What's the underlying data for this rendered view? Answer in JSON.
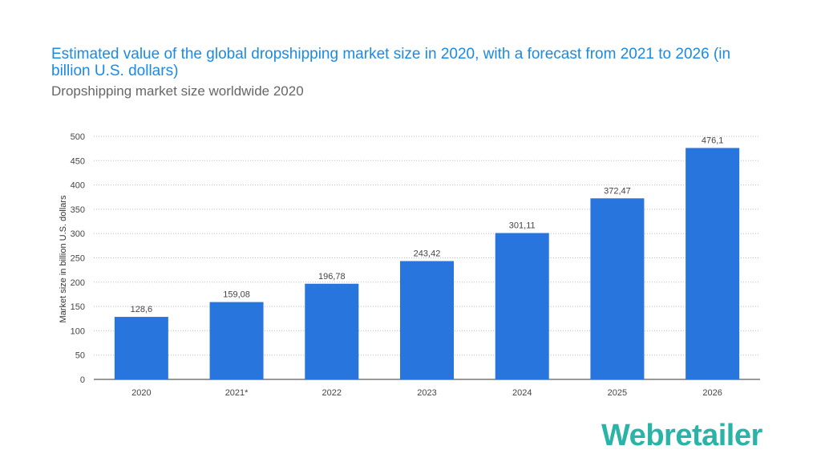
{
  "chart_data": {
    "type": "bar",
    "title": "Estimated value of the global dropshipping market size in 2020, with a forecast from 2021 to 2026 (in billion U.S. dollars)",
    "subtitle": "Dropshipping market size worldwide 2020",
    "xlabel": "",
    "ylabel": "Market size in billion U.S. dollars",
    "categories": [
      "2020",
      "2021*",
      "2022",
      "2023",
      "2024",
      "2025",
      "2026"
    ],
    "values": [
      128.6,
      159.08,
      196.78,
      243.42,
      301.11,
      372.47,
      476.1
    ],
    "value_labels": [
      "128,6",
      "159,08",
      "196,78",
      "243,42",
      "301,11",
      "372,47",
      "476,1"
    ],
    "yticks": [
      "0",
      "50",
      "100",
      "150",
      "200",
      "250",
      "300",
      "350",
      "400",
      "450",
      "500"
    ],
    "ylim": [
      0,
      500
    ],
    "grid": true,
    "bar_color": "#2876dd"
  },
  "brand": {
    "name": "Webretailer",
    "color": "#2ab3a6"
  }
}
